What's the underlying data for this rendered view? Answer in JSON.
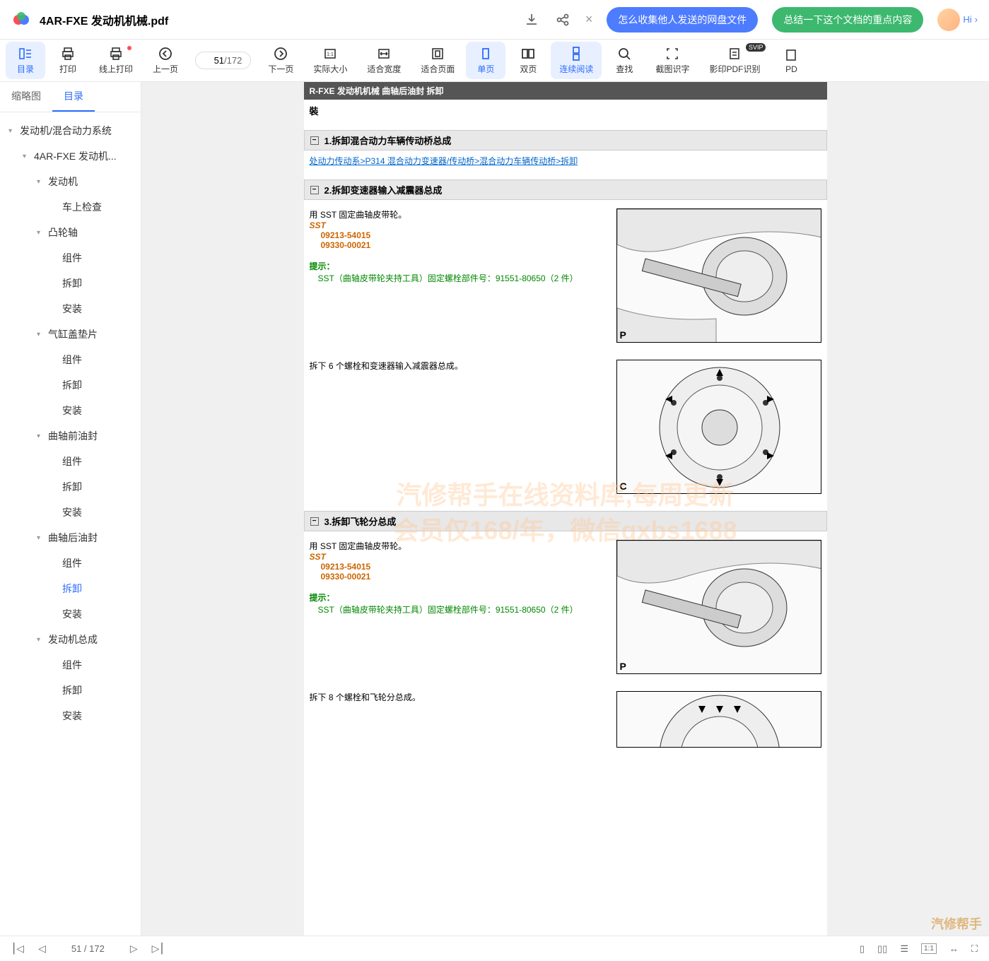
{
  "header": {
    "doc_title": "4AR-FXE 发动机机械.pdf",
    "prompt1": "怎么收集他人发送的网盘文件",
    "prompt2": "总结一下这个文档的重点内容",
    "hi": "Hi"
  },
  "toolbar": {
    "items": [
      {
        "label": "目录",
        "active": true
      },
      {
        "label": "打印"
      },
      {
        "label": "线上打印",
        "dot": true
      },
      {
        "label": "上一页"
      },
      {
        "label": "下一页"
      },
      {
        "label": "实际大小"
      },
      {
        "label": "适合宽度"
      },
      {
        "label": "适合页面"
      },
      {
        "label": "单页",
        "active": true
      },
      {
        "label": "双页"
      },
      {
        "label": "连续阅读",
        "active": true
      },
      {
        "label": "查找"
      },
      {
        "label": "截图识字"
      },
      {
        "label": "影印PDF识别",
        "svip": true
      },
      {
        "label": "PD"
      }
    ],
    "page_current": "51",
    "page_total": "172",
    "svip_text": "SVIP"
  },
  "sidebar": {
    "tabs": [
      "缩略图",
      "目录"
    ],
    "active_tab": 1,
    "tree": [
      {
        "level": 0,
        "label": "发动机/混合动力系统",
        "caret": true
      },
      {
        "level": 1,
        "label": "4AR-FXE 发动机...",
        "caret": true
      },
      {
        "level": 2,
        "label": "发动机",
        "caret": true
      },
      {
        "level": 3,
        "label": "车上检查"
      },
      {
        "level": 2,
        "label": "凸轮轴",
        "caret": true
      },
      {
        "level": 3,
        "label": "组件"
      },
      {
        "level": 3,
        "label": "拆卸"
      },
      {
        "level": 3,
        "label": "安装"
      },
      {
        "level": 2,
        "label": "气缸盖垫片",
        "caret": true
      },
      {
        "level": 3,
        "label": "组件"
      },
      {
        "level": 3,
        "label": "拆卸"
      },
      {
        "level": 3,
        "label": "安装"
      },
      {
        "level": 2,
        "label": "曲轴前油封",
        "caret": true
      },
      {
        "level": 3,
        "label": "组件"
      },
      {
        "level": 3,
        "label": "拆卸"
      },
      {
        "level": 3,
        "label": "安装"
      },
      {
        "level": 2,
        "label": "曲轴后油封",
        "caret": true
      },
      {
        "level": 3,
        "label": "组件"
      },
      {
        "level": 3,
        "label": "拆卸",
        "active": true
      },
      {
        "level": 3,
        "label": "安装"
      },
      {
        "level": 2,
        "label": "发动机总成",
        "caret": true
      },
      {
        "level": 3,
        "label": "组件"
      },
      {
        "level": 3,
        "label": "拆卸"
      },
      {
        "level": 3,
        "label": "安装"
      }
    ]
  },
  "doc": {
    "header_strip": "R-FXE  发动机机械   曲轴后油封   拆卸",
    "sub": "裝",
    "sec1": "1.拆卸混合动力车辆传动桥总成",
    "link1": "处动力传动系>P314 混合动力变速器/传动桥>混合动力车辆传动桥>拆卸",
    "sec2": "2.拆卸变速器输入减震器总成",
    "step2a": "用 SST 固定曲轴皮带轮。",
    "sst": "SST",
    "sst_n1": "09213-54015",
    "sst_n2": "09330-00021",
    "hint": "提示：",
    "hint_body": "SST（曲轴皮带轮夹持工具）固定螺栓部件号：91551-80650（2 件）",
    "step2b": "拆下 6 个螺栓和变速器输入减震器总成。",
    "sec3": "3.拆卸飞轮分总成",
    "step3a": "用 SST 固定曲轴皮带轮。",
    "step3b": "拆下 8 个螺栓和飞轮分总成。",
    "watermark_l1": "汽修帮手在线资料库,每周更新",
    "watermark_l2": "会员仅168/年，微信qxbs1688",
    "corner_p": "P",
    "corner_c": "C"
  },
  "bottom": {
    "page_current": "51",
    "page_total": "172",
    "brand": "汽修帮手"
  },
  "colors": {
    "accent": "#2d6cff",
    "pill_blue": "#4d7cff",
    "pill_green": "#3db86f",
    "sst": "#cc6600",
    "hint": "#008800"
  }
}
